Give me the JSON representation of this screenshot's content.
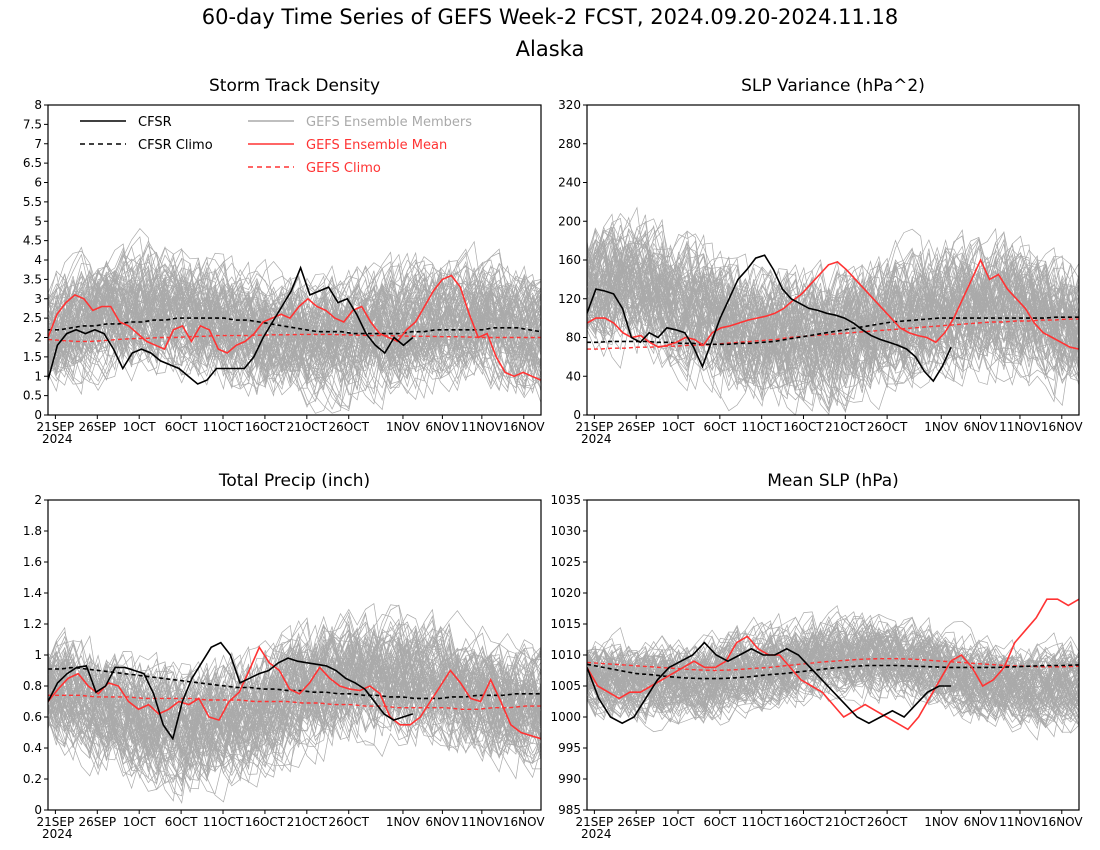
{
  "title": "60-day Time Series of GEFS Week-2 FCST, 2024.09.20-2024.11.18",
  "subtitle": "Alaska",
  "colors": {
    "cfsr": "#000000",
    "members": "#aaaaaa",
    "mean": "#ff3333",
    "clim": "#ff3333"
  },
  "legend": {
    "cfsr": "CFSR",
    "cfsr_climo": "CFSR Climo",
    "members": "GEFS Ensemble Members",
    "mean": "GEFS Ensemble Mean",
    "gefs_climo": "GEFS Climo"
  },
  "chart_data": [
    {
      "type": "line",
      "title": "Storm Track Density",
      "x_ticks": [
        "21SEP",
        "26SEP",
        "1OCT",
        "6OCT",
        "11OCT",
        "16OCT",
        "21OCT",
        "26OCT",
        "1NOV",
        "6NOV",
        "11NOV",
        "16NOV"
      ],
      "x_year": "2024",
      "ylim": [
        0,
        8
      ],
      "y_ticks": [
        "0",
        "0.5",
        "1",
        "1.5",
        "2",
        "2.5",
        "3",
        "3.5",
        "4",
        "4.5",
        "5",
        "5.5",
        "6",
        "6.5",
        "7",
        "7.5",
        "8"
      ],
      "member_spread": {
        "center": 2.1,
        "width": 3.8
      },
      "series": [
        {
          "name": "CFSR",
          "values": [
            0.9,
            1.8,
            2.1,
            2.2,
            2.1,
            2.2,
            2.1,
            1.7,
            1.2,
            1.6,
            1.7,
            1.6,
            1.4,
            1.3,
            1.2,
            1.0,
            0.8,
            0.9,
            1.2,
            1.2,
            1.2,
            1.2,
            1.5,
            2.0,
            2.4,
            2.8,
            3.2,
            3.8,
            3.1,
            3.2,
            3.3,
            2.9,
            3.0,
            2.6,
            2.1,
            1.8,
            1.6,
            2.0,
            1.8,
            2.0
          ]
        },
        {
          "name": "CFSR Climo",
          "values": [
            2.2,
            2.2,
            2.25,
            2.3,
            2.3,
            2.35,
            2.35,
            2.4,
            2.4,
            2.45,
            2.45,
            2.5,
            2.5,
            2.5,
            2.5,
            2.5,
            2.45,
            2.45,
            2.4,
            2.35,
            2.3,
            2.25,
            2.2,
            2.15,
            2.15,
            2.15,
            2.1,
            2.1,
            2.1,
            2.1,
            2.1,
            2.15,
            2.15,
            2.2,
            2.2,
            2.2,
            2.2,
            2.2,
            2.25,
            2.25,
            2.25,
            2.2,
            2.15
          ]
        },
        {
          "name": "GEFS Ensemble Mean",
          "values": [
            2.0,
            2.6,
            2.9,
            3.1,
            3.0,
            2.7,
            2.8,
            2.8,
            2.4,
            2.3,
            2.1,
            1.9,
            1.8,
            1.7,
            2.2,
            2.3,
            1.9,
            2.3,
            2.2,
            1.7,
            1.6,
            1.8,
            1.9,
            2.1,
            2.4,
            2.5,
            2.6,
            2.5,
            2.8,
            3.0,
            2.8,
            2.7,
            2.5,
            2.4,
            2.7,
            2.8,
            2.4,
            2.1,
            2.0,
            1.9,
            2.2,
            2.4,
            2.8,
            3.2,
            3.5,
            3.6,
            3.3,
            2.6,
            2.0,
            2.1,
            1.5,
            1.1,
            1.0,
            1.1,
            1.0,
            0.9
          ]
        },
        {
          "name": "GEFS Climo",
          "values": [
            1.95,
            1.92,
            1.9,
            1.9,
            1.92,
            1.95,
            1.97,
            1.98,
            2.0,
            2.0,
            2.02,
            2.03,
            2.05,
            2.05,
            2.05,
            2.06,
            2.07,
            2.07,
            2.08,
            2.08,
            2.08,
            2.07,
            2.06,
            2.05,
            2.05,
            2.04,
            2.03,
            2.03,
            2.02,
            2.02,
            2.01,
            2.0,
            2.0,
            2.0,
            2.0,
            2.0
          ]
        }
      ]
    },
    {
      "type": "line",
      "title": "SLP Variance (hPa^2)",
      "x_ticks": [
        "21SEP",
        "26SEP",
        "1OCT",
        "6OCT",
        "11OCT",
        "16OCT",
        "21OCT",
        "26OCT",
        "1NOV",
        "6NOV",
        "11NOV",
        "16NOV"
      ],
      "x_year": "2024",
      "ylim": [
        0,
        320
      ],
      "y_ticks": [
        "0",
        "40",
        "80",
        "120",
        "160",
        "200",
        "240",
        "280",
        "320"
      ],
      "member_spread": {
        "center": 105,
        "width": 170
      },
      "series": [
        {
          "name": "CFSR",
          "values": [
            105,
            130,
            128,
            125,
            110,
            80,
            75,
            85,
            80,
            90,
            88,
            85,
            70,
            50,
            75,
            100,
            120,
            140,
            150,
            162,
            165,
            150,
            130,
            120,
            115,
            110,
            108,
            105,
            103,
            100,
            95,
            88,
            82,
            78,
            75,
            72,
            68,
            60,
            45,
            35,
            50,
            70
          ]
        },
        {
          "name": "CFSR Climo",
          "values": [
            75,
            75,
            76,
            76,
            76,
            76,
            75,
            75,
            74,
            74,
            73,
            73,
            73,
            74,
            74,
            75,
            76,
            78,
            80,
            82,
            84,
            86,
            88,
            90,
            92,
            94,
            96,
            97,
            98,
            99,
            100,
            100,
            100,
            100,
            100,
            100,
            100,
            100,
            100,
            100,
            101,
            101,
            101
          ]
        },
        {
          "name": "GEFS Ensemble Mean",
          "values": [
            95,
            100,
            100,
            95,
            85,
            80,
            82,
            75,
            70,
            72,
            75,
            80,
            78,
            72,
            85,
            90,
            92,
            95,
            98,
            100,
            102,
            105,
            110,
            118,
            125,
            135,
            145,
            155,
            158,
            150,
            140,
            130,
            120,
            110,
            100,
            90,
            85,
            82,
            80,
            75,
            85,
            100,
            120,
            140,
            160,
            140,
            145,
            130,
            120,
            110,
            95,
            85,
            80,
            75,
            70,
            68
          ]
        },
        {
          "name": "GEFS Climo",
          "values": [
            68,
            68,
            69,
            69,
            70,
            70,
            71,
            71,
            72,
            72,
            73,
            74,
            75,
            76,
            77,
            78,
            80,
            81,
            82,
            83,
            84,
            85,
            86,
            87,
            88,
            89,
            90,
            91,
            92,
            93,
            94,
            95,
            96,
            96,
            97,
            97,
            98,
            98,
            99,
            99
          ]
        }
      ]
    },
    {
      "type": "line",
      "title": "Total Precip (inch)",
      "x_ticks": [
        "21SEP",
        "26SEP",
        "1OCT",
        "6OCT",
        "11OCT",
        "16OCT",
        "21OCT",
        "26OCT",
        "1NOV",
        "6NOV",
        "11NOV",
        "16NOV"
      ],
      "x_year": "2024",
      "ylim": [
        0,
        2
      ],
      "y_ticks": [
        "0",
        "0.2",
        "0.4",
        "0.6",
        "0.8",
        "1",
        "1.2",
        "1.4",
        "1.6",
        "1.8",
        "2"
      ],
      "member_spread": {
        "center": 0.72,
        "width": 0.95
      },
      "series": [
        {
          "name": "CFSR",
          "values": [
            0.7,
            0.82,
            0.88,
            0.92,
            0.93,
            0.76,
            0.8,
            0.92,
            0.92,
            0.9,
            0.88,
            0.75,
            0.55,
            0.46,
            0.7,
            0.85,
            0.95,
            1.05,
            1.08,
            1.0,
            0.82,
            0.85,
            0.88,
            0.9,
            0.95,
            0.98,
            0.96,
            0.95,
            0.94,
            0.93,
            0.9,
            0.85,
            0.82,
            0.78,
            0.7,
            0.62,
            0.58,
            0.6,
            0.62
          ]
        },
        {
          "name": "CFSR Climo",
          "values": [
            0.91,
            0.91,
            0.92,
            0.91,
            0.9,
            0.89,
            0.88,
            0.87,
            0.86,
            0.85,
            0.84,
            0.83,
            0.82,
            0.81,
            0.8,
            0.79,
            0.79,
            0.78,
            0.78,
            0.77,
            0.77,
            0.76,
            0.76,
            0.75,
            0.75,
            0.74,
            0.74,
            0.73,
            0.73,
            0.72,
            0.72,
            0.72,
            0.73,
            0.73,
            0.74,
            0.74,
            0.74,
            0.75,
            0.75,
            0.75
          ]
        },
        {
          "name": "GEFS Ensemble Mean",
          "values": [
            0.7,
            0.78,
            0.85,
            0.88,
            0.8,
            0.75,
            0.82,
            0.8,
            0.7,
            0.65,
            0.68,
            0.62,
            0.65,
            0.7,
            0.68,
            0.72,
            0.6,
            0.58,
            0.7,
            0.76,
            0.9,
            1.05,
            0.95,
            0.9,
            0.78,
            0.75,
            0.82,
            0.92,
            0.85,
            0.8,
            0.78,
            0.77,
            0.8,
            0.75,
            0.6,
            0.55,
            0.55,
            0.6,
            0.7,
            0.8,
            0.9,
            0.82,
            0.72,
            0.7,
            0.84,
            0.7,
            0.55,
            0.5,
            0.48,
            0.46
          ]
        },
        {
          "name": "GEFS Climo",
          "values": [
            0.74,
            0.74,
            0.74,
            0.73,
            0.73,
            0.73,
            0.72,
            0.72,
            0.72,
            0.72,
            0.71,
            0.71,
            0.71,
            0.7,
            0.7,
            0.7,
            0.69,
            0.69,
            0.68,
            0.68,
            0.67,
            0.67,
            0.66,
            0.66,
            0.66,
            0.66,
            0.65,
            0.65,
            0.66,
            0.66,
            0.67,
            0.67
          ]
        }
      ]
    },
    {
      "type": "line",
      "title": "Mean SLP (hPa)",
      "x_ticks": [
        "21SEP",
        "26SEP",
        "1OCT",
        "6OCT",
        "11OCT",
        "16OCT",
        "21OCT",
        "26OCT",
        "1NOV",
        "6NOV",
        "11NOV",
        "16NOV"
      ],
      "x_year": "2024",
      "ylim": [
        985,
        1035
      ],
      "y_ticks": [
        "985",
        "990",
        "995",
        "1000",
        "1005",
        "1010",
        "1015",
        "1020",
        "1025",
        "1030",
        "1035"
      ],
      "member_spread": {
        "center": 1007,
        "width": 16
      },
      "series": [
        {
          "name": "CFSR",
          "values": [
            1008,
            1003,
            1000,
            999,
            1000,
            1003,
            1006,
            1008,
            1009,
            1010,
            1012,
            1010,
            1009,
            1010,
            1011,
            1010,
            1010,
            1011,
            1010,
            1008,
            1006,
            1004,
            1002,
            1000,
            999,
            1000,
            1001,
            1000,
            1002,
            1004,
            1005,
            1005
          ]
        },
        {
          "name": "CFSR Climo",
          "values": [
            1008.5,
            1008,
            1007.5,
            1007,
            1006.8,
            1006.5,
            1006.3,
            1006.2,
            1006.2,
            1006.3,
            1006.5,
            1006.8,
            1007,
            1007.3,
            1007.6,
            1007.9,
            1008.1,
            1008.3,
            1008.3,
            1008.3,
            1008.2,
            1008.1,
            1008.0,
            1008.0,
            1008.0,
            1008.0,
            1008.1,
            1008.2,
            1008.3,
            1008.3,
            1008.4
          ]
        },
        {
          "name": "GEFS Ensemble Mean",
          "values": [
            1008,
            1005,
            1004,
            1003,
            1004,
            1004,
            1005,
            1006,
            1007,
            1008,
            1009,
            1008,
            1008,
            1009,
            1012,
            1013,
            1011,
            1010,
            1010,
            1008,
            1006,
            1005,
            1004,
            1002,
            1000,
            1001,
            1002,
            1001,
            1000,
            999,
            998,
            1000,
            1003,
            1006,
            1009,
            1010,
            1008,
            1005,
            1006,
            1008,
            1012,
            1014,
            1016,
            1019,
            1019,
            1018,
            1019
          ]
        },
        {
          "name": "GEFS Climo",
          "values": [
            1008.8,
            1008.6,
            1008.4,
            1008.2,
            1008.0,
            1007.8,
            1007.6,
            1007.5,
            1007.6,
            1007.8,
            1008.0,
            1008.3,
            1008.6,
            1008.9,
            1009.1,
            1009.3,
            1009.4,
            1009.4,
            1009.3,
            1009.1,
            1008.9,
            1008.7,
            1008.5,
            1008.3,
            1008.2,
            1008.1,
            1008.1,
            1008.2
          ]
        }
      ]
    }
  ]
}
